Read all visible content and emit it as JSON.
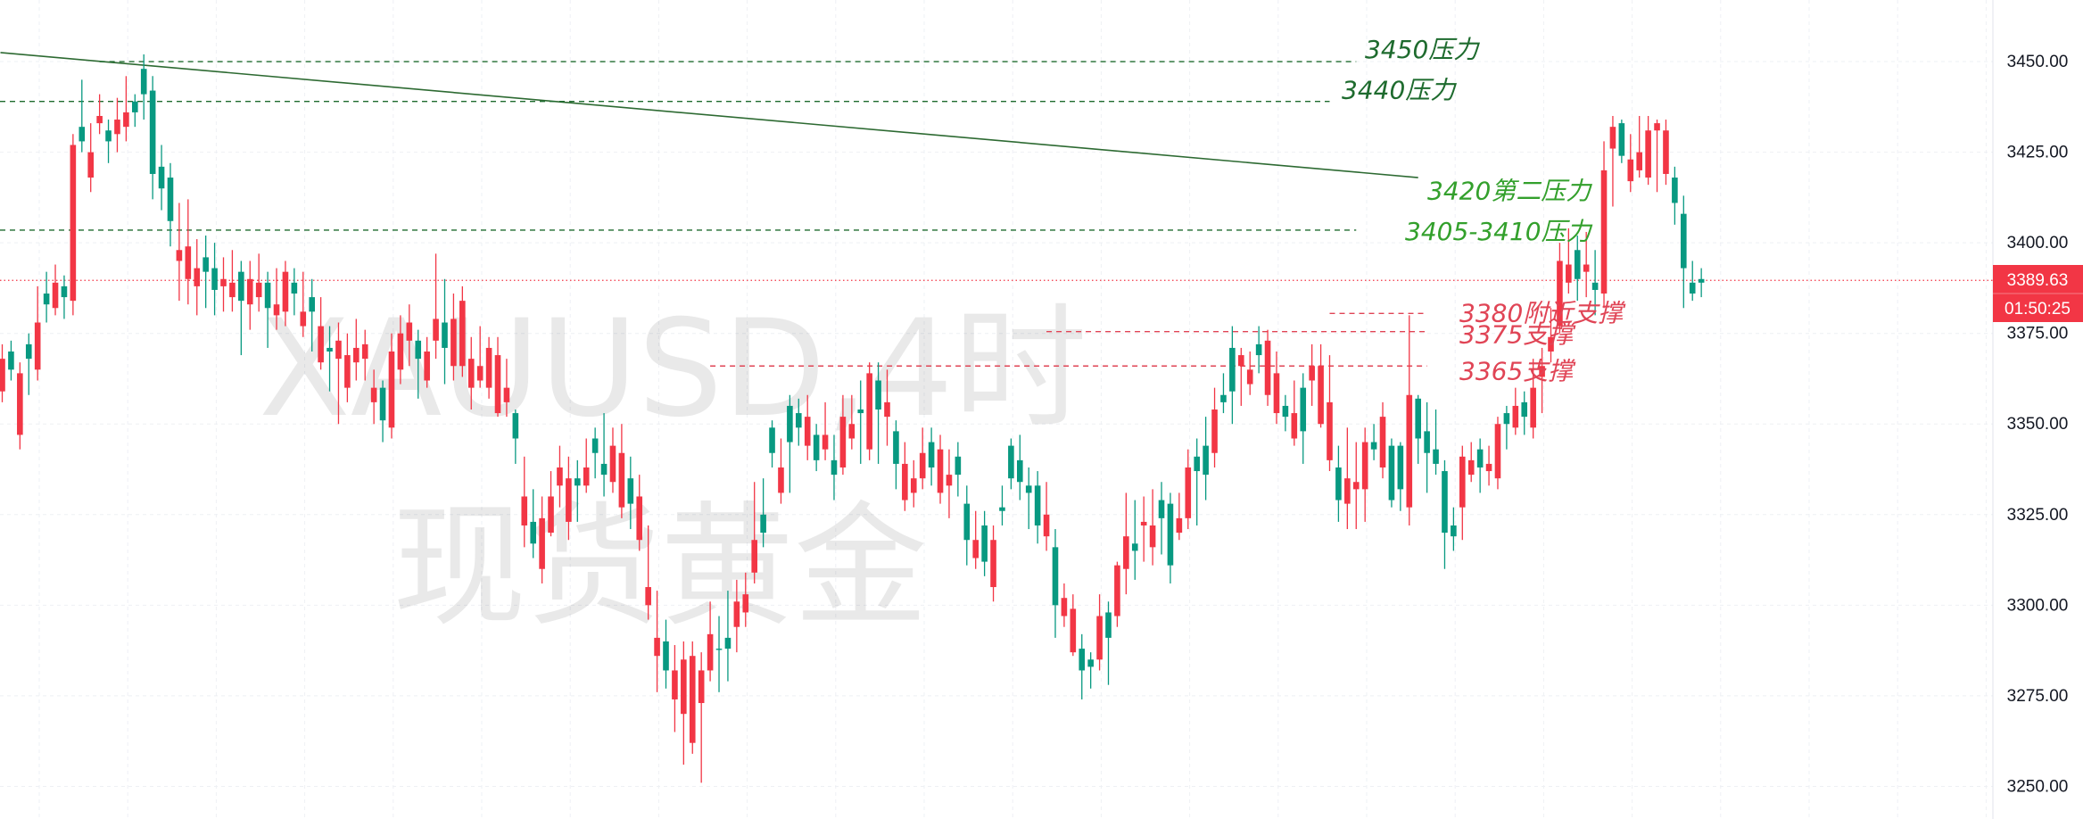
{
  "chart_data": {
    "type": "candlestick",
    "watermark": {
      "line1": "XAUUSD,4时",
      "line2": "现货黄金"
    },
    "y_axis": {
      "range": [
        3241,
        3467
      ],
      "ticks": [
        3450,
        3425,
        3400,
        3375,
        3350,
        3325,
        3300,
        3275,
        3250
      ],
      "tick_labels": [
        "3450.00",
        "3425.00",
        "3400.00",
        "3375.00",
        "3350.00",
        "3325.00",
        "3300.00",
        "3275.00",
        "3250.00"
      ]
    },
    "grid": true,
    "current_price": {
      "value": 3389.63,
      "label": "3389.63",
      "countdown": "01:50:25",
      "color": "#f23645"
    },
    "colors": {
      "up": "#089981",
      "down": "#f23645",
      "resistance": "#1e6b2e",
      "resistance_light": "#33a02c",
      "support": "#e04455",
      "trendline": "#2d6a32"
    },
    "trendline": {
      "from_index": 0,
      "from_price": 3452.5,
      "to_index": 160,
      "to_price": 3418.0
    },
    "levels": [
      {
        "price": 3450,
        "label": "3450压力",
        "kind": "resistance",
        "from_index": 11,
        "to_index": 153
      },
      {
        "price": 3439,
        "label": "3440压力",
        "kind": "resistance",
        "from_index": 0,
        "to_index": 150
      },
      {
        "price": 3403.5,
        "label": "3405-3410压力",
        "kind": "resistance",
        "from_index": 0,
        "to_index": 153
      },
      {
        "price": 3380.5,
        "label": "3380附近支撑",
        "kind": "support",
        "from_index": 150,
        "to_index": 161
      },
      {
        "price": 3375.5,
        "label": "3375支撑",
        "kind": "support",
        "from_index": 118,
        "to_index": 161
      },
      {
        "price": 3366,
        "label": "3365支撑",
        "kind": "support",
        "from_index": 80,
        "to_index": 161
      }
    ],
    "trend_label": {
      "label": "3420第二压力",
      "price": 3414.5,
      "index": 161
    },
    "candles": [
      [
        3368,
        3372,
        3356,
        3359
      ],
      [
        3365,
        3373,
        3362,
        3370
      ],
      [
        3364,
        3367,
        3343,
        3347
      ],
      [
        3368,
        3375,
        3358,
        3372
      ],
      [
        3378,
        3388,
        3362,
        3365
      ],
      [
        3383,
        3392,
        3378,
        3386
      ],
      [
        3389,
        3394,
        3380,
        3382
      ],
      [
        3385,
        3391,
        3379,
        3388
      ],
      [
        3427,
        3430,
        3380,
        3384
      ],
      [
        3428,
        3445,
        3425,
        3432
      ],
      [
        3425,
        3433,
        3414,
        3418
      ],
      [
        3435,
        3441,
        3430,
        3433
      ],
      [
        3428,
        3434,
        3422,
        3431
      ],
      [
        3434,
        3440,
        3425,
        3430
      ],
      [
        3436,
        3446,
        3428,
        3432
      ],
      [
        3436,
        3441,
        3432,
        3439
      ],
      [
        3441,
        3452,
        3434,
        3448
      ],
      [
        3419,
        3446,
        3412,
        3442
      ],
      [
        3415,
        3427,
        3409,
        3421
      ],
      [
        3406,
        3422,
        3399,
        3418
      ],
      [
        3398,
        3411,
        3384,
        3395
      ],
      [
        3399,
        3412,
        3383,
        3390
      ],
      [
        3393,
        3401,
        3380,
        3388
      ],
      [
        3392,
        3402,
        3382,
        3396
      ],
      [
        3387,
        3400,
        3380,
        3393
      ],
      [
        3390,
        3396,
        3381,
        3388
      ],
      [
        3389,
        3398,
        3381,
        3385
      ],
      [
        3384,
        3395,
        3369,
        3392
      ],
      [
        3390,
        3395,
        3376,
        3383
      ],
      [
        3389,
        3397,
        3381,
        3385
      ],
      [
        3382,
        3392,
        3371,
        3389
      ],
      [
        3383,
        3393,
        3376,
        3380
      ],
      [
        3392,
        3395,
        3377,
        3381
      ],
      [
        3386,
        3393,
        3380,
        3389
      ],
      [
        3381,
        3392,
        3374,
        3377
      ],
      [
        3381,
        3390,
        3370,
        3385
      ],
      [
        3377,
        3385,
        3365,
        3367
      ],
      [
        3370,
        3377,
        3359,
        3371
      ],
      [
        3373,
        3378,
        3350,
        3368
      ],
      [
        3369,
        3375,
        3356,
        3360
      ],
      [
        3371,
        3379,
        3362,
        3367
      ],
      [
        3372,
        3376,
        3362,
        3368
      ],
      [
        3360,
        3365,
        3350,
        3356
      ],
      [
        3351,
        3362,
        3345,
        3360
      ],
      [
        3370,
        3375,
        3346,
        3349
      ],
      [
        3375,
        3380,
        3361,
        3365
      ],
      [
        3378,
        3383,
        3366,
        3373
      ],
      [
        3368,
        3376,
        3357,
        3373
      ],
      [
        3370,
        3374,
        3360,
        3362
      ],
      [
        3379,
        3397,
        3368,
        3373
      ],
      [
        3371,
        3390,
        3361,
        3378
      ],
      [
        3379,
        3386,
        3362,
        3366
      ],
      [
        3384,
        3388,
        3363,
        3366
      ],
      [
        3368,
        3374,
        3354,
        3360
      ],
      [
        3366,
        3377,
        3360,
        3362
      ],
      [
        3371,
        3374,
        3357,
        3360
      ],
      [
        3369,
        3374,
        3352,
        3353
      ],
      [
        3360,
        3368,
        3352,
        3356
      ],
      [
        3346,
        3354,
        3339,
        3353
      ],
      [
        3330,
        3341,
        3316,
        3322
      ],
      [
        3317,
        3332,
        3313,
        3323
      ],
      [
        3324,
        3330,
        3306,
        3310
      ],
      [
        3330,
        3337,
        3319,
        3320
      ],
      [
        3338,
        3344,
        3327,
        3333
      ],
      [
        3335,
        3341,
        3318,
        3323
      ],
      [
        3333,
        3340,
        3323,
        3335
      ],
      [
        3338,
        3346,
        3331,
        3333
      ],
      [
        3342,
        3349,
        3335,
        3346
      ],
      [
        3336,
        3353,
        3330,
        3339
      ],
      [
        3344,
        3349,
        3331,
        3334
      ],
      [
        3342,
        3350,
        3324,
        3327
      ],
      [
        3328,
        3341,
        3321,
        3335
      ],
      [
        3330,
        3336,
        3315,
        3318
      ],
      [
        3305,
        3322,
        3296,
        3300
      ],
      [
        3291,
        3304,
        3276,
        3286
      ],
      [
        3282,
        3296,
        3277,
        3290
      ],
      [
        3282,
        3289,
        3265,
        3274
      ],
      [
        3285,
        3290,
        3256,
        3270
      ],
      [
        3286,
        3290,
        3259,
        3262
      ],
      [
        3282,
        3287,
        3251,
        3273
      ],
      [
        3292,
        3301,
        3279,
        3282
      ],
      [
        3288,
        3297,
        3276,
        3288
      ],
      [
        3288,
        3304,
        3279,
        3291
      ],
      [
        3301,
        3307,
        3287,
        3294
      ],
      [
        3303,
        3309,
        3294,
        3298
      ],
      [
        3318,
        3334,
        3306,
        3309
      ],
      [
        3320,
        3335,
        3316,
        3325
      ],
      [
        3342,
        3351,
        3338,
        3349
      ],
      [
        3338,
        3346,
        3328,
        3331
      ],
      [
        3345,
        3358,
        3331,
        3355
      ],
      [
        3349,
        3357,
        3344,
        3353
      ],
      [
        3352,
        3358,
        3340,
        3344
      ],
      [
        3340,
        3350,
        3337,
        3347
      ],
      [
        3347,
        3356,
        3340,
        3343
      ],
      [
        3336,
        3347,
        3329,
        3340
      ],
      [
        3352,
        3358,
        3336,
        3338
      ],
      [
        3350,
        3358,
        3343,
        3346
      ],
      [
        3353,
        3362,
        3339,
        3354
      ],
      [
        3364,
        3367,
        3340,
        3343
      ],
      [
        3354,
        3367,
        3339,
        3362
      ],
      [
        3356,
        3365,
        3344,
        3352
      ],
      [
        3339,
        3351,
        3332,
        3348
      ],
      [
        3339,
        3345,
        3326,
        3329
      ],
      [
        3335,
        3340,
        3327,
        3331
      ],
      [
        3342,
        3349,
        3332,
        3335
      ],
      [
        3338,
        3349,
        3333,
        3345
      ],
      [
        3343,
        3347,
        3328,
        3331
      ],
      [
        3336,
        3343,
        3324,
        3333
      ],
      [
        3336,
        3345,
        3330,
        3341
      ],
      [
        3318,
        3333,
        3311,
        3328
      ],
      [
        3318,
        3326,
        3310,
        3313
      ],
      [
        3312,
        3326,
        3308,
        3322
      ],
      [
        3318,
        3322,
        3301,
        3305
      ],
      [
        3326,
        3333,
        3322,
        3327
      ],
      [
        3335,
        3346,
        3332,
        3344
      ],
      [
        3334,
        3347,
        3329,
        3340
      ],
      [
        3331,
        3338,
        3321,
        3333
      ],
      [
        3322,
        3337,
        3317,
        3333
      ],
      [
        3325,
        3334,
        3315,
        3319
      ],
      [
        3300,
        3321,
        3291,
        3316
      ],
      [
        3302,
        3306,
        3294,
        3297
      ],
      [
        3299,
        3303,
        3286,
        3287
      ],
      [
        3282,
        3292,
        3274,
        3288
      ],
      [
        3283,
        3287,
        3277,
        3285
      ],
      [
        3297,
        3303,
        3282,
        3285
      ],
      [
        3291,
        3301,
        3278,
        3298
      ],
      [
        3311,
        3312,
        3294,
        3297
      ],
      [
        3319,
        3331,
        3303,
        3310
      ],
      [
        3315,
        3329,
        3307,
        3317
      ],
      [
        3323,
        3330,
        3312,
        3322
      ],
      [
        3322,
        3332,
        3311,
        3316
      ],
      [
        3324,
        3334,
        3314,
        3329
      ],
      [
        3311,
        3331,
        3306,
        3328
      ],
      [
        3324,
        3331,
        3318,
        3320
      ],
      [
        3338,
        3343,
        3321,
        3324
      ],
      [
        3337,
        3346,
        3322,
        3341
      ],
      [
        3336,
        3352,
        3329,
        3344
      ],
      [
        3354,
        3360,
        3338,
        3342
      ],
      [
        3356,
        3364,
        3353,
        3358
      ],
      [
        3359,
        3377,
        3350,
        3371
      ],
      [
        3369,
        3371,
        3355,
        3366
      ],
      [
        3365,
        3370,
        3358,
        3361
      ],
      [
        3369,
        3377,
        3364,
        3372
      ],
      [
        3373,
        3376,
        3355,
        3358
      ],
      [
        3364,
        3370,
        3350,
        3353
      ],
      [
        3352,
        3358,
        3348,
        3355
      ],
      [
        3353,
        3362,
        3344,
        3346
      ],
      [
        3348,
        3364,
        3339,
        3360
      ],
      [
        3366,
        3372,
        3355,
        3362
      ],
      [
        3366,
        3372,
        3349,
        3350
      ],
      [
        3356,
        3369,
        3337,
        3340
      ],
      [
        3329,
        3344,
        3323,
        3338
      ],
      [
        3335,
        3349,
        3321,
        3328
      ],
      [
        3334,
        3345,
        3321,
        3332
      ],
      [
        3345,
        3349,
        3323,
        3332
      ],
      [
        3343,
        3350,
        3340,
        3345
      ],
      [
        3352,
        3356,
        3335,
        3338
      ],
      [
        3329,
        3346,
        3327,
        3344
      ],
      [
        3332,
        3345,
        3326,
        3344
      ],
      [
        3358,
        3380,
        3322,
        3327
      ],
      [
        3346,
        3358,
        3339,
        3357
      ],
      [
        3342,
        3356,
        3331,
        3348
      ],
      [
        3339,
        3354,
        3336,
        3343
      ],
      [
        3320,
        3340,
        3310,
        3337
      ],
      [
        3319,
        3327,
        3315,
        3322
      ],
      [
        3341,
        3344,
        3318,
        3327
      ],
      [
        3340,
        3345,
        3334,
        3336
      ],
      [
        3338,
        3346,
        3331,
        3343
      ],
      [
        3339,
        3344,
        3333,
        3337
      ],
      [
        3350,
        3352,
        3332,
        3335
      ],
      [
        3350,
        3355,
        3343,
        3353
      ],
      [
        3355,
        3360,
        3347,
        3349
      ],
      [
        3352,
        3359,
        3347,
        3356
      ],
      [
        3360,
        3368,
        3346,
        3349
      ],
      [
        3366,
        3371,
        3353,
        3363
      ],
      [
        3374,
        3382,
        3367,
        3370
      ],
      [
        3395,
        3400,
        3375,
        3377
      ],
      [
        3394,
        3404,
        3386,
        3389
      ],
      [
        3390,
        3402,
        3384,
        3398
      ],
      [
        3394,
        3403,
        3385,
        3392
      ],
      [
        3387,
        3398,
        3380,
        3389
      ],
      [
        3420,
        3428,
        3382,
        3386
      ],
      [
        3432,
        3435,
        3410,
        3426
      ],
      [
        3424,
        3434,
        3422,
        3433
      ],
      [
        3423,
        3430,
        3414,
        3417
      ],
      [
        3425,
        3435,
        3418,
        3420
      ],
      [
        3431,
        3435,
        3416,
        3418
      ],
      [
        3433,
        3434,
        3414,
        3431
      ],
      [
        3431,
        3434,
        3416,
        3419
      ],
      [
        3411,
        3421,
        3405,
        3418
      ],
      [
        3393,
        3413,
        3382,
        3408
      ],
      [
        3386,
        3395,
        3384,
        3389
      ],
      [
        3389,
        3393,
        3385,
        3390
      ]
    ]
  }
}
